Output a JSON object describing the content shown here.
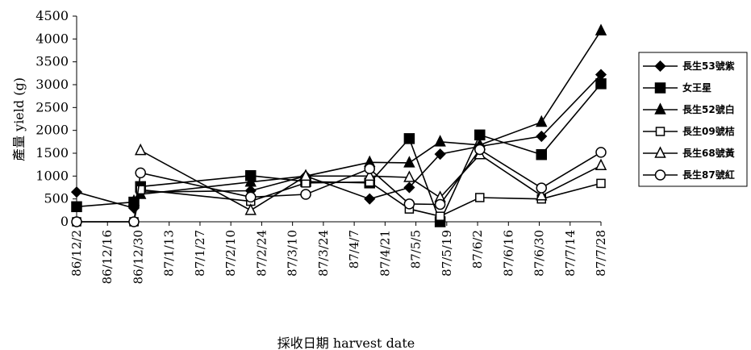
{
  "chart_data": {
    "type": "line",
    "title": "",
    "xlabel": "採收日期 harvest date",
    "ylabel": "產量 yield (g)",
    "ylim": [
      0,
      4500
    ],
    "y_ticks": [
      "0",
      "500",
      "1000",
      "1500",
      "2000",
      "2500",
      "3000",
      "3500",
      "4000",
      "4500"
    ],
    "x_tick_labels": [
      "86/12/2",
      "86/12/16",
      "86/12/30",
      "87/1/13",
      "87/1/27",
      "87/2/10",
      "87/2/24",
      "87/3/10",
      "87/3/24",
      "87/4/7",
      "87/4/21",
      "87/5/5",
      "87/5/19",
      "87/6/2",
      "87/6/16",
      "87/6/30",
      "87/7/14",
      "87/7/28"
    ],
    "xlim": [
      "86/12/2",
      "87/7/28"
    ],
    "grid": false,
    "legend_position": "right",
    "series": [
      {
        "name": "長生53號紫",
        "marker": "filled-diamond",
        "points": [
          {
            "x": "86/12/2",
            "y": 650
          },
          {
            "x": "86/12/28",
            "y": 300
          },
          {
            "x": "86/12/31",
            "y": 650
          },
          {
            "x": "87/2/19",
            "y": 680
          },
          {
            "x": "87/3/16",
            "y": 1000
          },
          {
            "x": "87/4/14",
            "y": 500
          },
          {
            "x": "87/5/2",
            "y": 750
          },
          {
            "x": "87/5/16",
            "y": 1480
          },
          {
            "x": "87/6/3",
            "y": 1650
          },
          {
            "x": "87/7/1",
            "y": 1870
          },
          {
            "x": "87/7/28",
            "y": 3220
          }
        ]
      },
      {
        "name": "女王星",
        "marker": "filled-square",
        "points": [
          {
            "x": "86/12/2",
            "y": 330
          },
          {
            "x": "86/12/28",
            "y": 430
          },
          {
            "x": "86/12/31",
            "y": 770
          },
          {
            "x": "87/2/19",
            "y": 1010
          },
          {
            "x": "87/3/16",
            "y": 880
          },
          {
            "x": "87/4/14",
            "y": 850
          },
          {
            "x": "87/5/2",
            "y": 1820
          },
          {
            "x": "87/5/16",
            "y": 0
          },
          {
            "x": "87/6/3",
            "y": 1900
          },
          {
            "x": "87/7/1",
            "y": 1470
          },
          {
            "x": "87/7/28",
            "y": 3020
          }
        ]
      },
      {
        "name": "長生52號白",
        "marker": "filled-triangle",
        "points": [
          {
            "x": "86/12/28",
            "y": 450
          },
          {
            "x": "86/12/31",
            "y": 600
          },
          {
            "x": "87/2/19",
            "y": 870
          },
          {
            "x": "87/3/16",
            "y": 1000
          },
          {
            "x": "87/4/14",
            "y": 1300
          },
          {
            "x": "87/5/2",
            "y": 1290
          },
          {
            "x": "87/5/16",
            "y": 1750
          },
          {
            "x": "87/6/3",
            "y": 1680
          },
          {
            "x": "87/7/1",
            "y": 2180
          },
          {
            "x": "87/7/28",
            "y": 4180
          }
        ]
      },
      {
        "name": "長生09號桔",
        "marker": "open-square",
        "points": [
          {
            "x": "86/12/2",
            "y": 0
          },
          {
            "x": "86/12/28",
            "y": 0
          },
          {
            "x": "86/12/31",
            "y": 700
          },
          {
            "x": "87/2/19",
            "y": 450
          },
          {
            "x": "87/3/16",
            "y": 850
          },
          {
            "x": "87/4/14",
            "y": 870
          },
          {
            "x": "87/5/2",
            "y": 280
          },
          {
            "x": "87/5/16",
            "y": 120
          },
          {
            "x": "87/6/3",
            "y": 530
          },
          {
            "x": "87/7/1",
            "y": 500
          },
          {
            "x": "87/7/28",
            "y": 840
          }
        ]
      },
      {
        "name": "長生68號黃",
        "marker": "open-triangle",
        "points": [
          {
            "x": "86/12/31",
            "y": 1560
          },
          {
            "x": "87/2/19",
            "y": 250
          },
          {
            "x": "87/3/16",
            "y": 1000
          },
          {
            "x": "87/4/14",
            "y": 1000
          },
          {
            "x": "87/5/2",
            "y": 970
          },
          {
            "x": "87/5/16",
            "y": 530
          },
          {
            "x": "87/6/3",
            "y": 1470
          },
          {
            "x": "87/7/1",
            "y": 570
          },
          {
            "x": "87/7/28",
            "y": 1230
          }
        ]
      },
      {
        "name": "長生87號紅",
        "marker": "open-circle",
        "points": [
          {
            "x": "86/12/2",
            "y": 0
          },
          {
            "x": "86/12/28",
            "y": 0
          },
          {
            "x": "86/12/31",
            "y": 1070
          },
          {
            "x": "87/2/19",
            "y": 540
          },
          {
            "x": "87/3/16",
            "y": 600
          },
          {
            "x": "87/4/14",
            "y": 1160
          },
          {
            "x": "87/5/2",
            "y": 390
          },
          {
            "x": "87/5/16",
            "y": 380
          },
          {
            "x": "87/6/3",
            "y": 1580
          },
          {
            "x": "87/7/1",
            "y": 740
          },
          {
            "x": "87/7/28",
            "y": 1520
          }
        ]
      }
    ]
  }
}
